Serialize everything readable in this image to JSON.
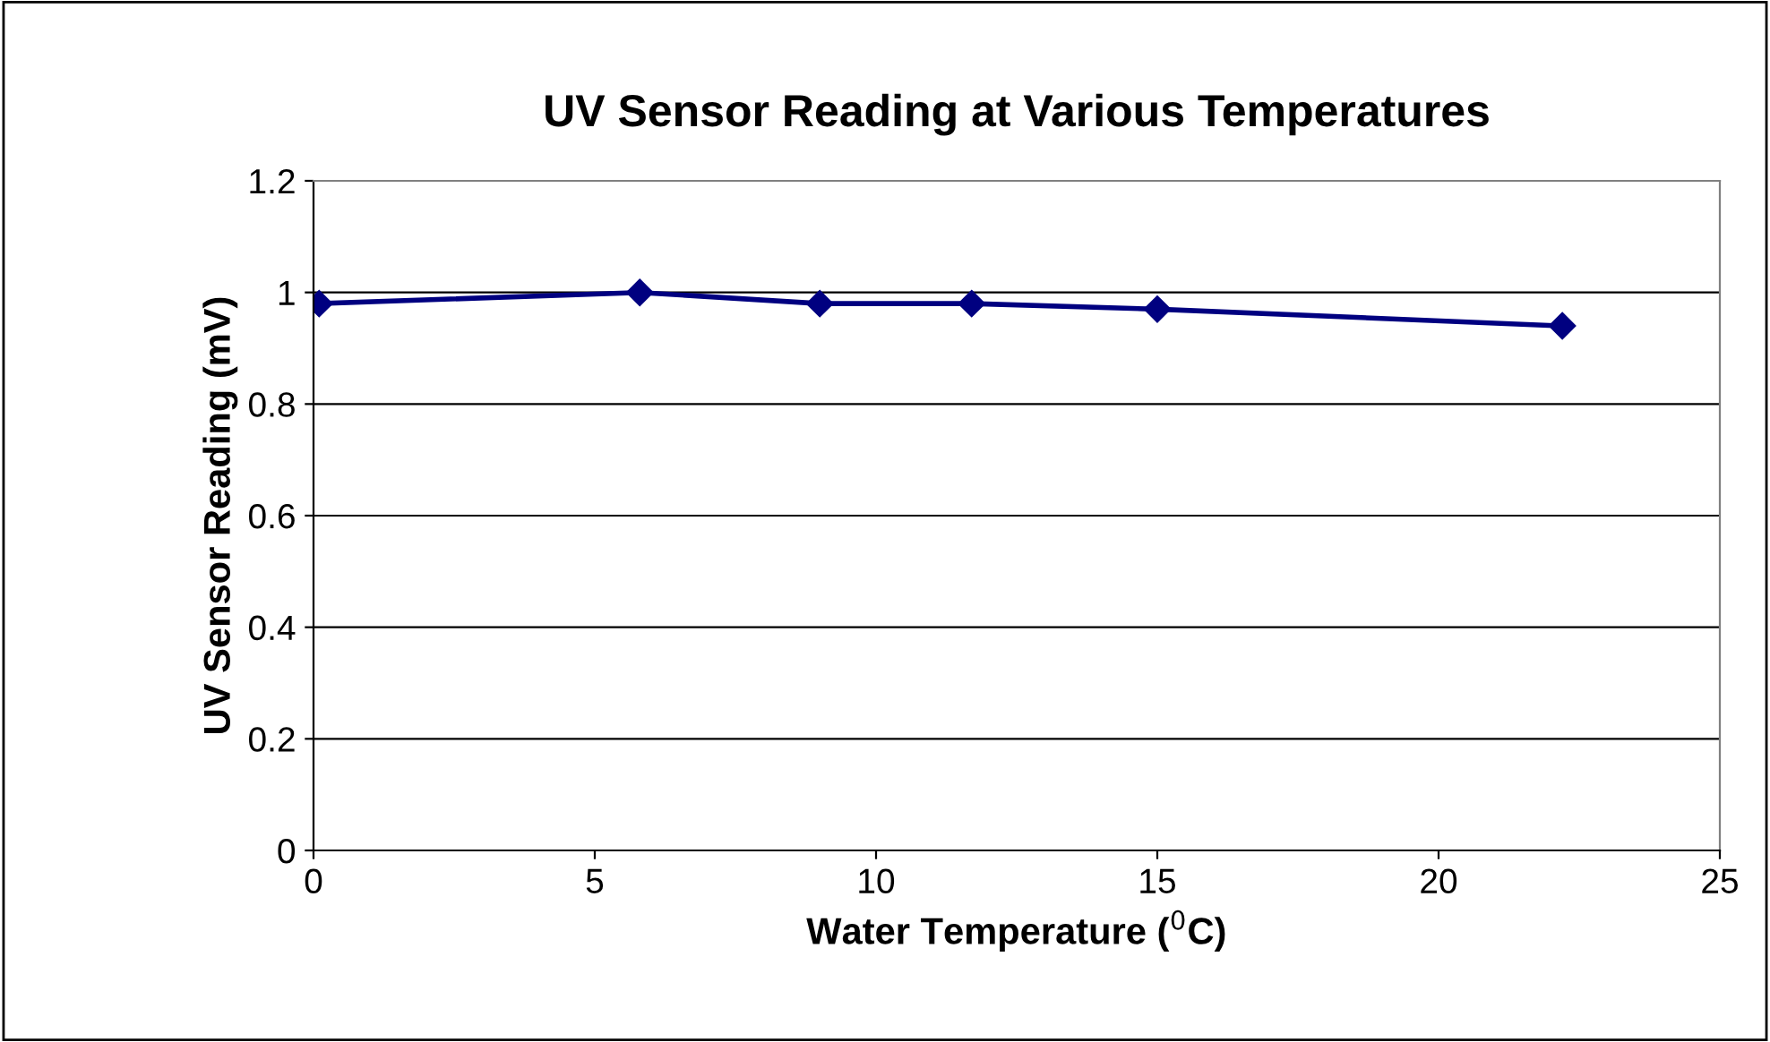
{
  "chart_data": {
    "type": "line",
    "title": "UV Sensor Reading at Various Temperatures",
    "xlabel": "Water Temperature ($^{0}$C)",
    "ylabel": "UV Sensor Reading (mV)",
    "x": [
      0.1,
      5.8,
      9.0,
      11.7,
      15.0,
      22.2
    ],
    "series": [
      {
        "color": "#000080",
        "values": [
          0.98,
          1.0,
          0.98,
          0.98,
          0.97,
          0.94
        ]
      }
    ],
    "xlim": [
      0,
      25
    ],
    "xticks": [
      0,
      5,
      10,
      15,
      20,
      25
    ],
    "ylim": [
      0,
      1.2
    ],
    "yticks": [
      0,
      0.2,
      0.4,
      0.6,
      0.8,
      1,
      1.2
    ],
    "grid": "y",
    "legend": false,
    "marker": "diamond",
    "line_style": "solid"
  }
}
